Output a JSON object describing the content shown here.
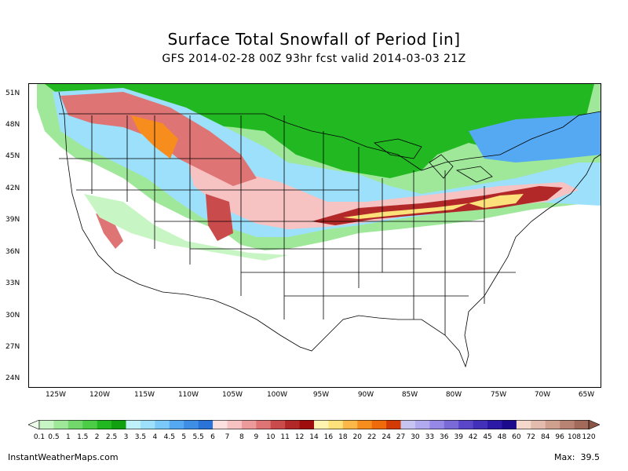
{
  "header": {
    "title": "Surface Total Snowfall of Period [in]",
    "subtitle": "GFS 2014-02-28 00Z 93hr fcst valid 2014-03-03 21Z"
  },
  "axes": {
    "latitudes": [
      "51N",
      "48N",
      "45N",
      "42N",
      "39N",
      "36N",
      "33N",
      "30N",
      "27N",
      "24N"
    ],
    "longitudes": [
      "125W",
      "120W",
      "115W",
      "110W",
      "105W",
      "100W",
      "95W",
      "90W",
      "85W",
      "80W",
      "75W",
      "70W",
      "65W"
    ]
  },
  "legend": {
    "levels": [
      "0.1",
      "0.5",
      "1",
      "1.5",
      "2",
      "2.5",
      "3",
      "3.5",
      "4",
      "4.5",
      "5",
      "5.5",
      "6",
      "7",
      "8",
      "9",
      "10",
      "11",
      "12",
      "14",
      "16",
      "18",
      "20",
      "22",
      "24",
      "27",
      "30",
      "33",
      "36",
      "39",
      "42",
      "45",
      "48",
      "60",
      "72",
      "84",
      "96",
      "108",
      "120"
    ],
    "colors": [
      "#ecfeea",
      "#c8f5c4",
      "#9fe89a",
      "#72d86c",
      "#4ccd46",
      "#22b822",
      "#10a010",
      "#bff1fb",
      "#9de0fb",
      "#7ac9f9",
      "#55a9f2",
      "#3f8ee6",
      "#2a74d9",
      "#fce0e0",
      "#f7c2c2",
      "#ec9a9a",
      "#df7474",
      "#c94b4b",
      "#b22727",
      "#a00d0d",
      "#fff3b0",
      "#fde17a",
      "#fbb848",
      "#f78d1d",
      "#ee6a0a",
      "#d33b06",
      "#c8c4f2",
      "#b2aaee",
      "#9588e6",
      "#7a6ad8",
      "#5a46c8",
      "#4230b8",
      "#2c1aa6",
      "#1c0a8c",
      "#f4d8cc",
      "#e3bcae",
      "#cfa08e",
      "#b98373",
      "#a26a5a",
      "#8a5546"
    ]
  },
  "footer": {
    "site": "InstantWeatherMaps.com",
    "max_label": "Max:",
    "max_value": "39.5"
  }
}
